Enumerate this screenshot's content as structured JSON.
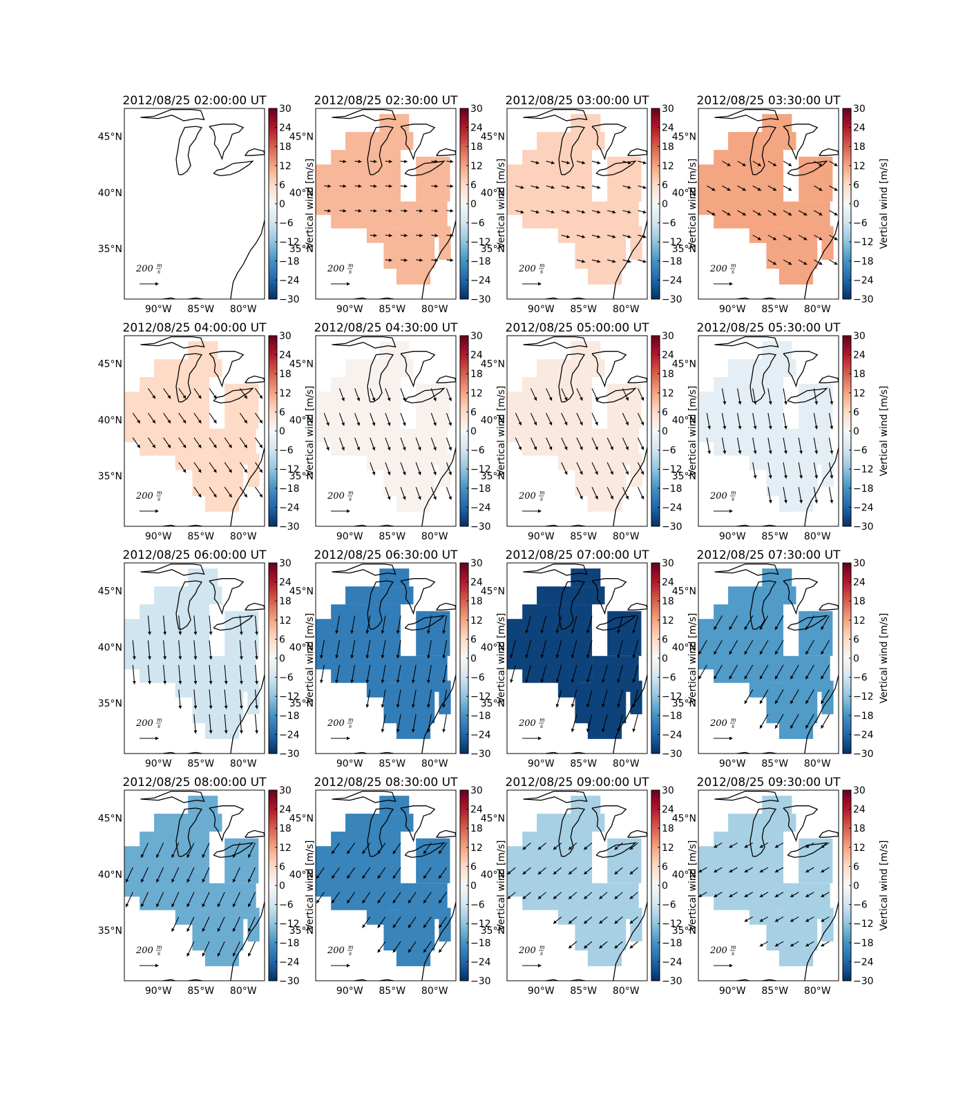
{
  "figure": {
    "rows": 4,
    "cols": 4,
    "region": "Great Lakes / eastern United States",
    "lon_range": [
      -94,
      -77.5
    ],
    "lat_range": [
      30.5,
      47.5
    ]
  },
  "axes": {
    "x_ticks": [
      "90°W",
      "85°W",
      "80°W"
    ],
    "y_ticks": [
      "45°N",
      "40°N",
      "35°N"
    ]
  },
  "colorbar": {
    "label": "Vertical wind [m/s]",
    "ticks": [
      "30",
      "24",
      "18",
      "12",
      "6",
      "0",
      "−6",
      "−12",
      "−18",
      "−24",
      "−30"
    ],
    "range": [
      -30,
      30
    ],
    "colormap": "RdBu_r",
    "colors": {
      "low": "#053061",
      "mid": "#f7f7f7",
      "high": "#67001f"
    }
  },
  "quiver_key": {
    "value": "200",
    "unit_num": "m",
    "unit_den": "s"
  },
  "chart_data": [
    {
      "type": "heatmap",
      "title": "2012/08/25 02:00:00 UT",
      "vertical_wind": null,
      "arrow_direction_deg": null,
      "arrow_scale": 0
    },
    {
      "type": "heatmap",
      "title": "2012/08/25 02:30:00 UT",
      "vertical_wind": 10,
      "arrow_direction_deg": -5,
      "arrow_scale": 0.35
    },
    {
      "type": "heatmap",
      "title": "2012/08/25 03:00:00 UT",
      "vertical_wind": 7,
      "arrow_direction_deg": -15,
      "arrow_scale": 0.45
    },
    {
      "type": "heatmap",
      "title": "2012/08/25 03:30:00 UT",
      "vertical_wind": 12,
      "arrow_direction_deg": -30,
      "arrow_scale": 0.5
    },
    {
      "type": "heatmap",
      "title": "2012/08/25 04:00:00 UT",
      "vertical_wind": 6,
      "arrow_direction_deg": -55,
      "arrow_scale": 0.65
    },
    {
      "type": "heatmap",
      "title": "2012/08/25 04:30:00 UT",
      "vertical_wind": 1,
      "arrow_direction_deg": -70,
      "arrow_scale": 0.7
    },
    {
      "type": "heatmap",
      "title": "2012/08/25 05:00:00 UT",
      "vertical_wind": 3,
      "arrow_direction_deg": -65,
      "arrow_scale": 0.7
    },
    {
      "type": "heatmap",
      "title": "2012/08/25 05:30:00 UT",
      "vertical_wind": -3,
      "arrow_direction_deg": -80,
      "arrow_scale": 0.85
    },
    {
      "type": "heatmap",
      "title": "2012/08/25 06:00:00 UT",
      "vertical_wind": -6,
      "arrow_direction_deg": -85,
      "arrow_scale": 1.0
    },
    {
      "type": "heatmap",
      "title": "2012/08/25 06:30:00 UT",
      "vertical_wind": -21,
      "arrow_direction_deg": -100,
      "arrow_scale": 0.95
    },
    {
      "type": "heatmap",
      "title": "2012/08/25 07:00:00 UT",
      "vertical_wind": -28,
      "arrow_direction_deg": -105,
      "arrow_scale": 0.95
    },
    {
      "type": "heatmap",
      "title": "2012/08/25 07:30:00 UT",
      "vertical_wind": -17,
      "arrow_direction_deg": -120,
      "arrow_scale": 0.85
    },
    {
      "type": "heatmap",
      "title": "2012/08/25 08:00:00 UT",
      "vertical_wind": -15,
      "arrow_direction_deg": -115,
      "arrow_scale": 0.85
    },
    {
      "type": "heatmap",
      "title": "2012/08/25 08:30:00 UT",
      "vertical_wind": -20,
      "arrow_direction_deg": -125,
      "arrow_scale": 0.7
    },
    {
      "type": "heatmap",
      "title": "2012/08/25 09:00:00 UT",
      "vertical_wind": -10,
      "arrow_direction_deg": -140,
      "arrow_scale": 0.55
    },
    {
      "type": "heatmap",
      "title": "2012/08/25 09:30:00 UT",
      "vertical_wind": -10,
      "arrow_direction_deg": -150,
      "arrow_scale": 0.5
    }
  ]
}
